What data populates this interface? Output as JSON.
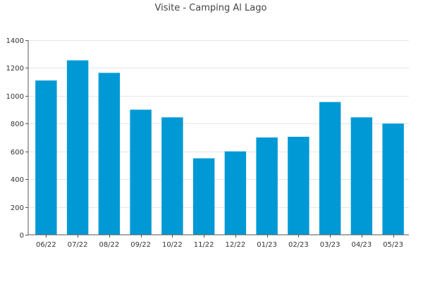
{
  "chart_data": {
    "type": "bar",
    "title": "Visite - Camping Al Lago",
    "xlabel": "",
    "ylabel": "",
    "categories": [
      "06/22",
      "07/22",
      "08/22",
      "09/22",
      "10/22",
      "11/22",
      "12/22",
      "01/23",
      "02/23",
      "03/23",
      "04/23",
      "05/23"
    ],
    "series": [
      {
        "values": [
          1110,
          1255,
          1165,
          900,
          845,
          550,
          600,
          700,
          705,
          955,
          845,
          800
        ],
        "color": "#0099d6"
      }
    ],
    "ylim": [
      0,
      1400
    ],
    "yticks": [
      0,
      200,
      400,
      600,
      800,
      1000,
      1200,
      1400
    ],
    "grid": true,
    "legend": "none"
  }
}
